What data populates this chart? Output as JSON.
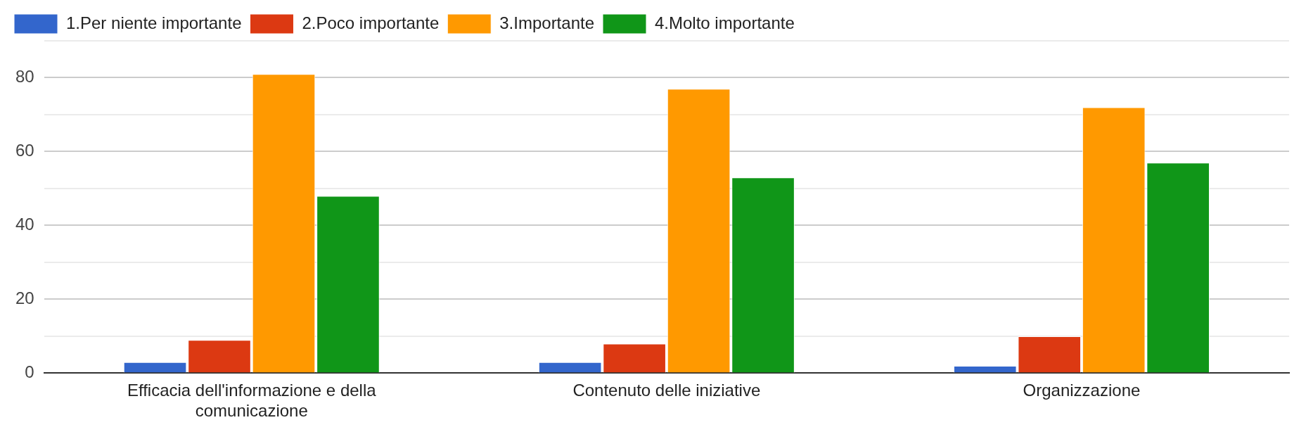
{
  "chart_data": {
    "type": "bar",
    "categories": [
      "Efficacia dell'informazione e della comunicazione",
      "Contenuto delle iniziative",
      "Organizzazione"
    ],
    "series": [
      {
        "name": "1.Per niente importante",
        "color": "#3366cc",
        "values": [
          3,
          3,
          2
        ]
      },
      {
        "name": "2.Poco importante",
        "color": "#dc3912",
        "values": [
          9,
          8,
          10
        ]
      },
      {
        "name": "3.Importante",
        "color": "#ff9900",
        "values": [
          81,
          77,
          72
        ]
      },
      {
        "name": "4.Molto importante",
        "color": "#109618",
        "values": [
          48,
          53,
          57
        ]
      }
    ],
    "ylim": [
      0,
      90
    ],
    "yticks": [
      0,
      {
        "value": 10,
        "label": null
      },
      20,
      {
        "value": 30,
        "label": null
      },
      40,
      {
        "value": 50,
        "label": null
      },
      60,
      {
        "value": 70,
        "label": null
      },
      80,
      {
        "value": 90,
        "label": null
      }
    ],
    "grid": "y",
    "legend": "top left"
  }
}
